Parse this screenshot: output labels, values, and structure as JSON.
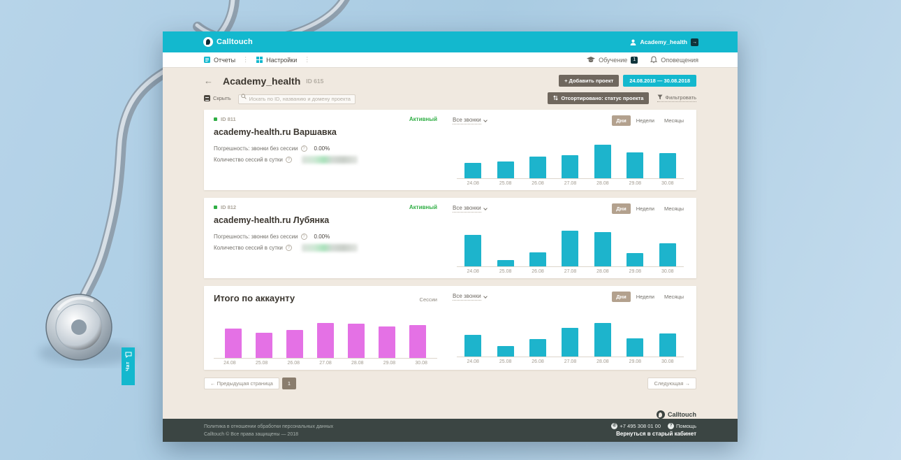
{
  "topbar": {
    "brand": "Calltouch",
    "account": "Academy_health"
  },
  "menubar": {
    "reports": "Отчеты",
    "settings": "Настройки",
    "training": "Обучение",
    "training_badge": "1",
    "notifications": "Оповещения"
  },
  "page": {
    "back": "←",
    "title": "Academy_health",
    "project_id": "ID 615",
    "add_project": "+ Добавить проект",
    "date_range": "24.08.2018 — 30.08.2018",
    "hide": "Скрыть",
    "search_placeholder": "Искать по ID, названию и домену проекта",
    "sorted": "Отсортировано: статус проекта",
    "filter": "Фильтровать"
  },
  "chart_controls": {
    "dropdown": "Все звонки",
    "periods": [
      "Дни",
      "Недели",
      "Месяцы"
    ],
    "active_period": "Дни"
  },
  "cards": [
    {
      "id": "ID 811",
      "title": "academy-health.ru Варшавка",
      "status": "Активный",
      "error_label": "Погрешность: звонки без сессии",
      "error_value": "0.00%",
      "sessions_label": "Количество сессий в сутки"
    },
    {
      "id": "ID 812",
      "title": "academy-health.ru Лубянка",
      "status": "Активный",
      "error_label": "Погрешность: звонки без сессии",
      "error_value": "0.00%",
      "sessions_label": "Количество сессий в сутки"
    }
  ],
  "summary": {
    "title": "Итого по аккаунту",
    "sessions_label": "Сессии"
  },
  "pagination": {
    "prev": "← Предыдущая страница",
    "page": "1",
    "next": "Следующая →"
  },
  "prefooter_brand": "Calltouch",
  "footer": {
    "privacy": "Политика в отношении обработки персональных данных",
    "copyright": "Calltouch © Все права защищены — 2018",
    "phone": "+7 495 308 01 00",
    "help": "Помощь",
    "back_link": "Вернуться в старый кабинет"
  },
  "chat_tab": {
    "label": "Чат"
  },
  "colors": {
    "accent": "#13b8ce",
    "bar_cyan": "#1db4cc",
    "bar_pink": "#e471e5",
    "status_green": "#2fae44",
    "dark_button": "#6f675e",
    "active_toggle": "#b3a18e",
    "footer_bg": "#3b4543",
    "content_bg": "#f0e9e0"
  },
  "chart_data": [
    {
      "type": "bar",
      "title": "academy-health.ru Варшавка — Все звонки (Дни)",
      "categories": [
        "24.08",
        "25.08",
        "26.08",
        "27.08",
        "28.08",
        "29.08",
        "30.08"
      ],
      "values": [
        22,
        24,
        31,
        33,
        48,
        37,
        36
      ],
      "color": "#1db4cc",
      "xlabel": "",
      "ylabel": "",
      "ylim": [
        0,
        55
      ],
      "grid": false,
      "legend": "none",
      "note": "no y-axis labels shown; values are relative bar heights"
    },
    {
      "type": "bar",
      "title": "academy-health.ru Лубянка — Все звонки (Дни)",
      "categories": [
        "24.08",
        "25.08",
        "26.08",
        "27.08",
        "28.08",
        "29.08",
        "30.08"
      ],
      "values": [
        45,
        9,
        20,
        51,
        49,
        19,
        33
      ],
      "color": "#1db4cc",
      "xlabel": "",
      "ylabel": "",
      "ylim": [
        0,
        55
      ],
      "grid": false,
      "legend": "none"
    },
    {
      "type": "bar",
      "title": "Итого по аккаунту — Сессии (Дни)",
      "categories": [
        "24.08",
        "25.08",
        "26.08",
        "27.08",
        "28.08",
        "29.08",
        "30.08"
      ],
      "values": [
        42,
        36,
        40,
        50,
        49,
        45,
        47
      ],
      "color": "#e471e5",
      "xlabel": "",
      "ylabel": "",
      "ylim": [
        0,
        55
      ],
      "grid": false,
      "legend": "none"
    },
    {
      "type": "bar",
      "title": "Итого по аккаунту — Все звонки (Дни)",
      "categories": [
        "24.08",
        "25.08",
        "26.08",
        "27.08",
        "28.08",
        "29.08",
        "30.08"
      ],
      "values": [
        31,
        15,
        25,
        41,
        48,
        26,
        33
      ],
      "color": "#1db4cc",
      "xlabel": "",
      "ylabel": "",
      "ylim": [
        0,
        55
      ],
      "grid": false,
      "legend": "none"
    }
  ]
}
